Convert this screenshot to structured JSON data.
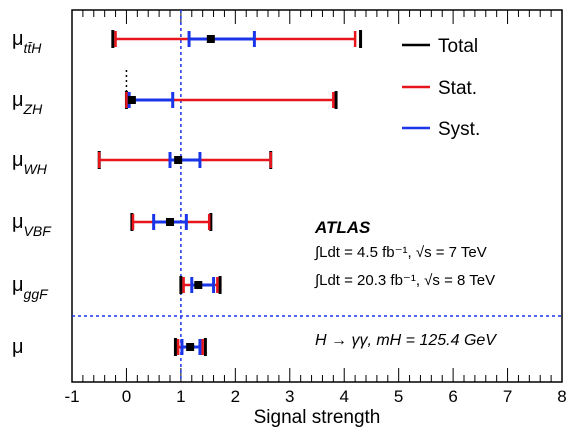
{
  "chart_data": {
    "type": "scatter",
    "xlabel": "Signal strength",
    "xlim": [
      -1,
      8
    ],
    "x_ticks": [
      "-1",
      "0",
      "1",
      "2",
      "3",
      "4",
      "5",
      "6",
      "7",
      "8"
    ],
    "reference_lines": [
      {
        "x": 1,
        "style": "dotted-blue"
      }
    ],
    "separator_after_row": 5,
    "grid": false,
    "legend_position": "top-right",
    "legend": [
      {
        "label": "Total",
        "color": "#000000"
      },
      {
        "label": "Stat.",
        "color": "#e8161c"
      },
      {
        "label": "Syst.",
        "color": "#1a35e8"
      }
    ],
    "rows": [
      {
        "label_base": "μ",
        "label_sub": "tt̄H",
        "value": 1.55,
        "total": [
          -0.25,
          4.3
        ],
        "stat": [
          -0.2,
          4.2
        ],
        "syst": [
          1.15,
          2.35
        ]
      },
      {
        "label_base": "μ",
        "label_sub": "ZH",
        "value": 0.1,
        "total": [
          0.0,
          3.85
        ],
        "stat": [
          0.0,
          3.8
        ],
        "syst": [
          0.05,
          0.85
        ],
        "lower_limit_dotted": true
      },
      {
        "label_base": "μ",
        "label_sub": "WH",
        "value": 0.95,
        "total": [
          -0.5,
          2.65
        ],
        "stat": [
          -0.5,
          2.65
        ],
        "syst": [
          0.8,
          1.35
        ]
      },
      {
        "label_base": "μ",
        "label_sub": "VBF",
        "value": 0.8,
        "total": [
          0.1,
          1.55
        ],
        "stat": [
          0.12,
          1.52
        ],
        "syst": [
          0.5,
          1.1
        ]
      },
      {
        "label_base": "μ",
        "label_sub": "ggF",
        "value": 1.32,
        "total": [
          1.0,
          1.72
        ],
        "stat": [
          1.05,
          1.67
        ],
        "syst": [
          1.2,
          1.6
        ]
      },
      {
        "label_base": "μ",
        "label_sub": "",
        "value": 1.17,
        "total": [
          0.9,
          1.45
        ],
        "stat": [
          0.95,
          1.4
        ],
        "syst": [
          1.02,
          1.35
        ]
      }
    ],
    "annotations": {
      "experiment": "ATLAS",
      "lumi_7": "∫Ldt = 4.5 fb⁻¹, √s = 7 TeV",
      "lumi_8": "∫Ldt = 20.3 fb⁻¹, √s = 8 TeV",
      "process": "H → γγ, mH = 125.4 GeV"
    }
  }
}
